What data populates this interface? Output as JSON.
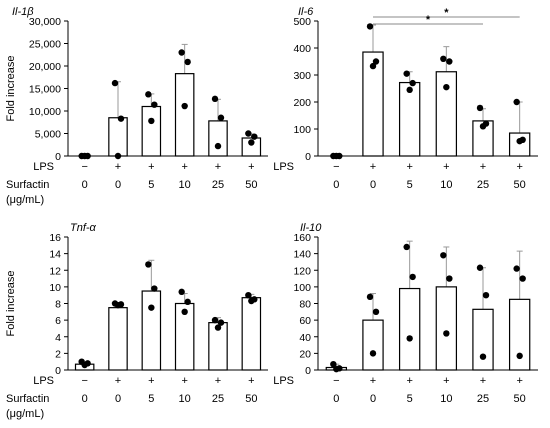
{
  "chart_data": [
    {
      "type": "bar",
      "title": "Il-1β",
      "ylabel": "Fold increase",
      "ylim": [
        0,
        30000
      ],
      "yticks": [
        0,
        5000,
        10000,
        15000,
        20000,
        25000,
        30000
      ],
      "ytick_labels": [
        "0",
        "5,000",
        "10,000",
        "15,000",
        "20,000",
        "25,000",
        "30,000"
      ],
      "row_labels": [
        "LPS",
        "Surfactin",
        "(μg/mL)"
      ],
      "lps": [
        "−",
        "+",
        "+",
        "+",
        "+",
        "+"
      ],
      "surfactin": [
        "0",
        "0",
        "5",
        "10",
        "25",
        "50"
      ],
      "values": [
        0,
        8500,
        11000,
        18300,
        7800,
        4000
      ],
      "errors": [
        0,
        8000,
        2800,
        6500,
        4800,
        900
      ],
      "points": [
        [
          0,
          0,
          0
        ],
        [
          16200,
          8300,
          0
        ],
        [
          13700,
          11400,
          7800
        ],
        [
          23000,
          20900,
          11100
        ],
        [
          12700,
          8500,
          2200
        ],
        [
          5000,
          4300,
          3000
        ]
      ],
      "significance": []
    },
    {
      "type": "bar",
      "title": "Il-6",
      "ylabel": "",
      "ylim": [
        0,
        500
      ],
      "yticks": [
        0,
        100,
        200,
        300,
        400,
        500
      ],
      "ytick_labels": [
        "0",
        "100",
        "200",
        "300",
        "400",
        "500"
      ],
      "row_labels": [
        "LPS",
        "Surfactin",
        "(μg/mL)"
      ],
      "lps": [
        "−",
        "+",
        "+",
        "+",
        "+",
        "+"
      ],
      "surfactin": [
        "0",
        "0",
        "5",
        "10",
        "25",
        "50"
      ],
      "values": [
        0,
        385,
        272,
        312,
        130,
        85
      ],
      "errors": [
        0,
        100,
        40,
        93,
        45,
        115
      ],
      "points": [
        [
          0,
          0,
          0
        ],
        [
          480,
          350,
          333
        ],
        [
          305,
          270,
          245
        ],
        [
          360,
          350,
          255
        ],
        [
          178,
          120,
          110
        ],
        [
          200,
          60,
          55
        ]
      ],
      "significance": [
        {
          "from": 1,
          "to": 5,
          "label": "*"
        },
        {
          "from": 1,
          "to": 4,
          "label": "*"
        }
      ]
    },
    {
      "type": "bar",
      "title": "Tnf-α",
      "ylabel": "Fold increase",
      "ylim": [
        0,
        16
      ],
      "yticks": [
        0,
        2,
        4,
        6,
        8,
        10,
        12,
        14,
        16
      ],
      "ytick_labels": [
        "0",
        "2",
        "4",
        "6",
        "8",
        "10",
        "12",
        "14",
        "16"
      ],
      "row_labels": [
        "LPS",
        "Surfactin",
        "(μg/mL)"
      ],
      "lps": [
        "−",
        "+",
        "+",
        "+",
        "+",
        "+"
      ],
      "surfactin": [
        "0",
        "0",
        "5",
        "10",
        "25",
        "50"
      ],
      "values": [
        0.7,
        7.5,
        9.5,
        8.0,
        5.7,
        8.7
      ],
      "errors": [
        0.2,
        0.3,
        3.7,
        1.2,
        0.6,
        0.4
      ],
      "points": [
        [
          1,
          0.8,
          0.6
        ],
        [
          8.0,
          7.9,
          7.8
        ],
        [
          12.7,
          9.8,
          7.5
        ],
        [
          9.4,
          8.2,
          7.0
        ],
        [
          6.0,
          5.7,
          5.1
        ],
        [
          9.0,
          8.5,
          8.3
        ]
      ],
      "significance": []
    },
    {
      "type": "bar",
      "title": "Il-10",
      "ylabel": "",
      "ylim": [
        0,
        160
      ],
      "yticks": [
        0,
        20,
        40,
        60,
        80,
        100,
        120,
        140,
        160
      ],
      "ytick_labels": [
        "0",
        "20",
        "40",
        "60",
        "80",
        "100",
        "120",
        "140",
        "160"
      ],
      "row_labels": [
        "LPS",
        "Surfactin",
        "(μg/mL)"
      ],
      "lps": [
        "−",
        "+",
        "+",
        "+",
        "+",
        "+"
      ],
      "surfactin": [
        "0",
        "0",
        "5",
        "10",
        "25",
        "50"
      ],
      "values": [
        3,
        60,
        98,
        100,
        73,
        85
      ],
      "errors": [
        4,
        32,
        57,
        48,
        50,
        58
      ],
      "points": [
        [
          7,
          2,
          1
        ],
        [
          88,
          70,
          20
        ],
        [
          148,
          112,
          38
        ],
        [
          138,
          110,
          44
        ],
        [
          123,
          90,
          16
        ],
        [
          122,
          110,
          17
        ]
      ],
      "significance": []
    }
  ]
}
